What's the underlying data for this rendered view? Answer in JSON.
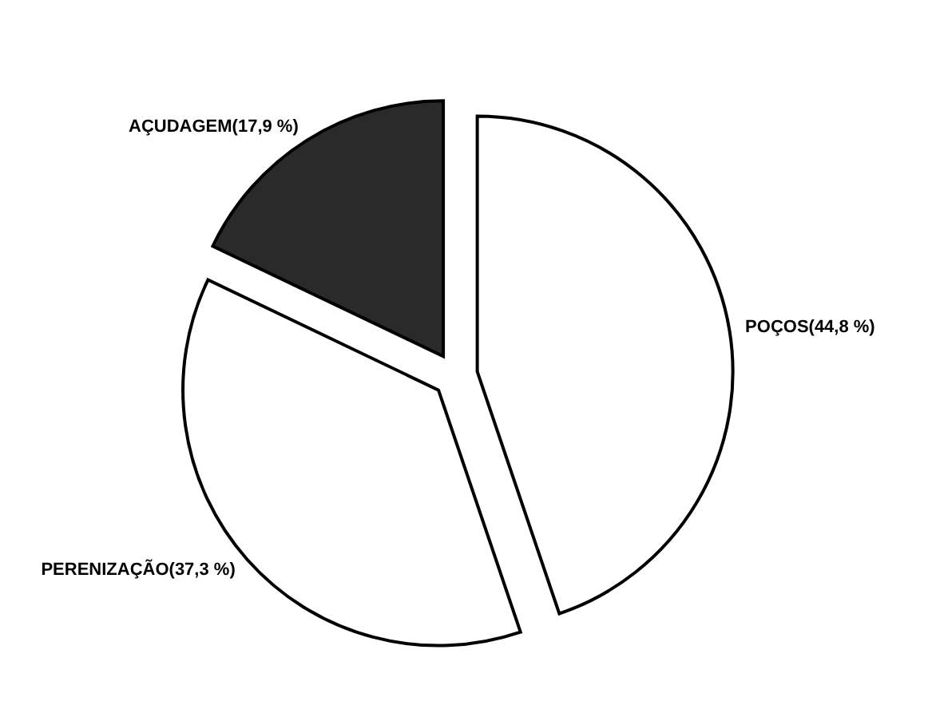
{
  "chart_data": {
    "type": "pie",
    "categories": [
      "POÇOS",
      "PERENIZAÇÃO",
      "AÇUDAGEM"
    ],
    "values": [
      44.8,
      37.3,
      17.9
    ],
    "value_labels": [
      "(44,8 %)",
      "(37,3 %)",
      "(17,9 %)"
    ],
    "colors": [
      "#ffffff",
      "#ffffff",
      "#2a2a2a"
    ]
  }
}
